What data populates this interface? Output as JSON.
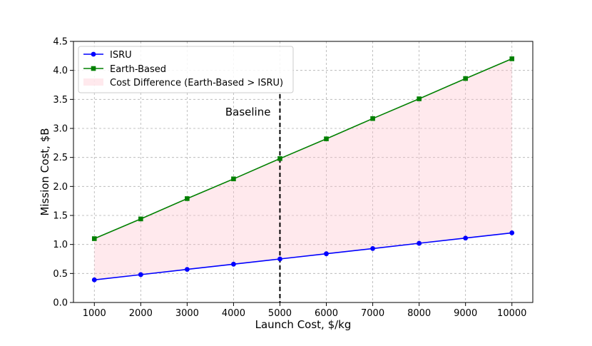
{
  "chart_data": {
    "type": "line",
    "xlabel": "Launch Cost, $/kg",
    "ylabel": "Mission Cost, $B",
    "x": [
      1000,
      2000,
      3000,
      4000,
      5000,
      6000,
      7000,
      8000,
      9000,
      10000
    ],
    "xlim": [
      550,
      10450
    ],
    "ylim": [
      0,
      4.5
    ],
    "xticks": [
      "1000",
      "2000",
      "3000",
      "4000",
      "5000",
      "6000",
      "7000",
      "8000",
      "9000",
      "10000"
    ],
    "yticks": [
      "0.0",
      "0.5",
      "1.0",
      "1.5",
      "2.0",
      "2.5",
      "3.0",
      "3.5",
      "4.0",
      "4.5"
    ],
    "grid": true,
    "legend_position": "top-left",
    "series": [
      {
        "name": "ISRU",
        "color": "#0000ff",
        "marker": "circle",
        "values": [
          0.39,
          0.48,
          0.57,
          0.66,
          0.75,
          0.84,
          0.93,
          1.02,
          1.11,
          1.2
        ]
      },
      {
        "name": "Earth-Based",
        "color": "#008000",
        "marker": "square",
        "values": [
          1.1,
          1.44,
          1.79,
          2.13,
          2.48,
          2.82,
          3.17,
          3.51,
          3.86,
          4.2
        ]
      }
    ],
    "fill": {
      "name": "Cost Difference (Earth-Based > ISRU)",
      "color": "#ffc0cb",
      "opacity": 0.35
    },
    "annotation": {
      "text": "Baseline",
      "x": 5000,
      "line": "dashed vertical"
    }
  }
}
